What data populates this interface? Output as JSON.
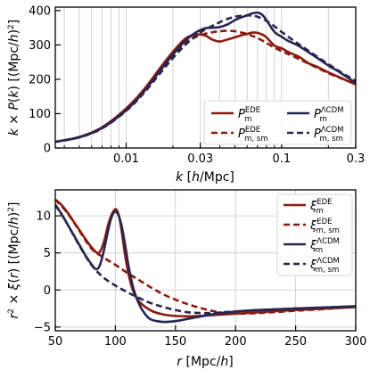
{
  "chart_data": [
    {
      "type": "line",
      "xlabel": "k [h/Mpc]",
      "ylabel": "k × P(k) [(Mpc/h)^2]",
      "xscale": "log",
      "xlim": [
        0.0035,
        0.3
      ],
      "ylim": [
        0,
        410
      ],
      "grid": "vertical",
      "legend_position": "lower-right",
      "xtick_labels": [
        "0.01",
        "0.03",
        "0.1",
        "0.3"
      ],
      "ytick_labels": [
        "0",
        "100",
        "200",
        "300",
        "400"
      ],
      "series": [
        {
          "name": "P_m^EDE",
          "color": "#8b1a10",
          "dash": "solid",
          "x": [
            0.0035,
            0.005,
            0.007,
            0.01,
            0.013,
            0.017,
            0.02,
            0.024,
            0.028,
            0.032,
            0.036,
            0.04,
            0.045,
            0.05,
            0.055,
            0.06,
            0.065,
            0.07,
            0.075,
            0.08,
            0.09,
            0.1,
            0.11,
            0.12,
            0.13,
            0.15,
            0.17,
            0.2,
            0.23,
            0.26,
            0.3
          ],
          "y": [
            18,
            32,
            60,
            115,
            170,
            240,
            280,
            318,
            330,
            328,
            315,
            310,
            316,
            322,
            328,
            332,
            336,
            335,
            330,
            322,
            298,
            290,
            280,
            272,
            265,
            246,
            236,
            220,
            208,
            197,
            185
          ]
        },
        {
          "name": "P_m,sm^EDE",
          "color": "#8b1a10",
          "dash": "dashed",
          "x": [
            0.0035,
            0.005,
            0.007,
            0.01,
            0.013,
            0.017,
            0.02,
            0.024,
            0.028,
            0.032,
            0.036,
            0.04,
            0.045,
            0.05,
            0.055,
            0.06,
            0.065,
            0.07,
            0.08,
            0.09,
            0.1,
            0.12,
            0.15,
            0.2,
            0.25,
            0.3
          ],
          "y": [
            18,
            32,
            60,
            114,
            168,
            235,
            272,
            305,
            323,
            332,
            337,
            340,
            341,
            340,
            336,
            332,
            326,
            320,
            306,
            292,
            282,
            266,
            245,
            218,
            200,
            187
          ]
        },
        {
          "name": "P_m^ΛCDM",
          "color": "#262650",
          "dash": "solid",
          "x": [
            0.0035,
            0.005,
            0.007,
            0.01,
            0.013,
            0.017,
            0.02,
            0.024,
            0.028,
            0.032,
            0.036,
            0.04,
            0.045,
            0.05,
            0.055,
            0.06,
            0.065,
            0.07,
            0.075,
            0.08,
            0.09,
            0.1,
            0.11,
            0.12,
            0.13,
            0.15,
            0.17,
            0.2,
            0.23,
            0.26,
            0.3
          ],
          "y": [
            18,
            31,
            58,
            110,
            164,
            232,
            272,
            312,
            336,
            348,
            350,
            352,
            360,
            372,
            380,
            386,
            392,
            394,
            388,
            372,
            338,
            324,
            312,
            304,
            296,
            278,
            262,
            240,
            224,
            208,
            190
          ]
        },
        {
          "name": "P_m,sm^ΛCDM",
          "color": "#262650",
          "dash": "dashed",
          "x": [
            0.0035,
            0.005,
            0.007,
            0.01,
            0.013,
            0.017,
            0.02,
            0.024,
            0.028,
            0.032,
            0.036,
            0.04,
            0.045,
            0.05,
            0.055,
            0.06,
            0.065,
            0.07,
            0.08,
            0.09,
            0.1,
            0.12,
            0.15,
            0.2,
            0.25,
            0.3
          ],
          "y": [
            18,
            31,
            57,
            108,
            160,
            224,
            262,
            300,
            326,
            344,
            356,
            366,
            376,
            382,
            385,
            386,
            385,
            382,
            370,
            354,
            338,
            312,
            282,
            244,
            216,
            196
          ]
        }
      ]
    },
    {
      "type": "line",
      "xlabel": "r [Mpc/h]",
      "ylabel": "r^2 × ξ(r) [(Mpc/h)^2]",
      "xscale": "linear",
      "xlim": [
        50,
        300
      ],
      "ylim": [
        -5.5,
        13.5
      ],
      "grid": "both",
      "legend_position": "upper-right",
      "xtick_labels": [
        "50",
        "100",
        "150",
        "200",
        "250",
        "300"
      ],
      "ytick_labels": [
        "−5",
        "0",
        "5",
        "10"
      ],
      "series": [
        {
          "name": "ξ_m^EDE",
          "color": "#8b1a10",
          "dash": "solid",
          "x": [
            50,
            55,
            60,
            65,
            70,
            75,
            80,
            85,
            88,
            91,
            94,
            97,
            100,
            102,
            104,
            106,
            108,
            111,
            115,
            120,
            130,
            140,
            150,
            160,
            170,
            180,
            190,
            200,
            220,
            250,
            300
          ],
          "y": [
            12.2,
            11.5,
            10.5,
            9.3,
            8.1,
            6.9,
            5.8,
            5.0,
            5.4,
            6.8,
            8.8,
            10.2,
            10.9,
            10.5,
            9.2,
            7.1,
            4.8,
            2.1,
            -0.2,
            -1.6,
            -2.8,
            -3.3,
            -3.5,
            -3.55,
            -3.5,
            -3.4,
            -3.3,
            -3.2,
            -3.0,
            -2.7,
            -2.3
          ]
        },
        {
          "name": "ξ_m,sm^EDE",
          "color": "#8b1a10",
          "dash": "dashed",
          "x": [
            50,
            60,
            70,
            80,
            90,
            100,
            110,
            120,
            130,
            140,
            150,
            160,
            170,
            180,
            190,
            200,
            220,
            250,
            300
          ],
          "y": [
            12.2,
            10.4,
            8.0,
            5.6,
            4.4,
            3.4,
            2.3,
            1.3,
            0.3,
            -0.6,
            -1.3,
            -1.9,
            -2.4,
            -2.8,
            -3.1,
            -3.2,
            -3.1,
            -2.8,
            -2.3
          ]
        },
        {
          "name": "ξ_m^ΛCDM",
          "color": "#262650",
          "dash": "solid",
          "x": [
            50,
            55,
            60,
            65,
            70,
            75,
            80,
            84,
            87,
            90,
            93,
            96,
            99,
            102,
            105,
            108,
            111,
            115,
            120,
            125,
            130,
            140,
            150,
            160,
            170,
            180,
            190,
            200,
            220,
            250,
            300
          ],
          "y": [
            11.5,
            10.3,
            8.9,
            7.5,
            6.1,
            4.7,
            3.5,
            2.8,
            3.3,
            5.0,
            7.3,
            9.4,
            10.5,
            10.3,
            8.8,
            6.2,
            3.2,
            0.2,
            -2.0,
            -3.3,
            -4.0,
            -4.3,
            -4.2,
            -3.9,
            -3.6,
            -3.3,
            -3.1,
            -2.9,
            -2.7,
            -2.5,
            -2.2
          ]
        },
        {
          "name": "ξ_m,sm^ΛCDM",
          "color": "#262650",
          "dash": "dashed",
          "x": [
            50,
            60,
            70,
            80,
            90,
            100,
            110,
            120,
            130,
            140,
            150,
            160,
            170,
            180,
            190,
            200,
            220,
            250,
            300
          ],
          "y": [
            11.5,
            8.9,
            6.0,
            3.4,
            1.7,
            0.6,
            -0.3,
            -1.1,
            -1.8,
            -2.3,
            -2.7,
            -3.0,
            -3.1,
            -3.1,
            -3.0,
            -2.9,
            -2.7,
            -2.5,
            -2.2
          ]
        }
      ]
    }
  ]
}
